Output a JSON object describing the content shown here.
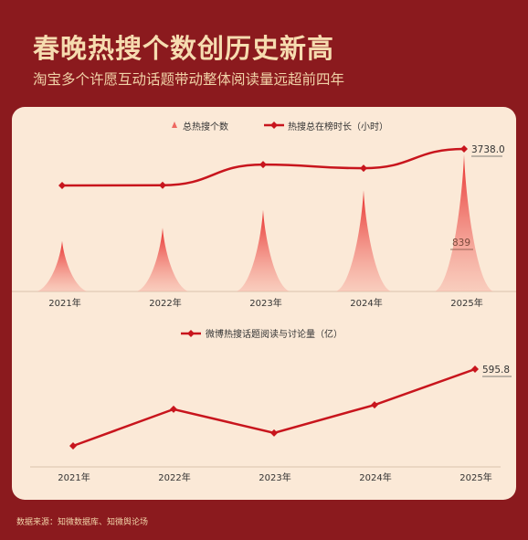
{
  "header": {
    "title": "春晚热搜个数创历史新高",
    "subtitle": "淘宝多个许愿互动话题带动整体阅读量远超前四年"
  },
  "footer": {
    "source": "数据来源：知微数据库、知微舆论场"
  },
  "colors": {
    "background": "#8b1a1e",
    "card": "#fbe9d7",
    "line": "#c8151d",
    "peak": "#e8302e",
    "title": "#f6dcb0"
  },
  "chart_data": [
    {
      "type": "area",
      "categories": [
        "2021年",
        "2022年",
        "2023年",
        "2024年",
        "2025年"
      ],
      "series": [
        {
          "name": "总热搜个数",
          "kind": "peak",
          "values": [
            310,
            390,
            500,
            620,
            839
          ]
        },
        {
          "name": "热搜总在榜时长（小时）",
          "kind": "line",
          "values": [
            2150,
            2160,
            3060,
            2900,
            3738.0
          ]
        }
      ],
      "data_labels": [
        {
          "series": 0,
          "index": 4,
          "text": "839"
        },
        {
          "series": 1,
          "index": 4,
          "text": "3738.0"
        }
      ],
      "legend": "top-center",
      "grid": false
    },
    {
      "type": "line",
      "categories": [
        "2021年",
        "2022年",
        "2023年",
        "2024年",
        "2025年"
      ],
      "series": [
        {
          "name": "微博热搜话题阅读与讨论量（亿）",
          "values": [
            240,
            410,
            300,
            430,
            595.8
          ]
        }
      ],
      "data_labels": [
        {
          "series": 0,
          "index": 4,
          "text": "595.8"
        }
      ],
      "legend": "top-center",
      "grid": false
    }
  ]
}
